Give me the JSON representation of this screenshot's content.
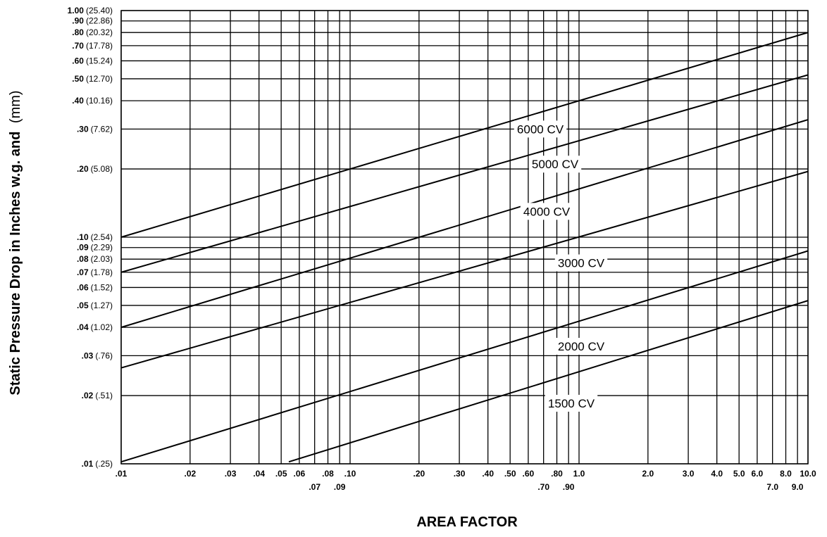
{
  "chart_data": {
    "type": "line",
    "title": "",
    "xlabel": "AREA FACTOR",
    "ylabel_bold": "Static Pressure Drop in Inches w.g. and",
    "ylabel_paren": "(mm)",
    "x_scale": "log",
    "y_scale": "log",
    "xlim": [
      0.01,
      10.0
    ],
    "ylim": [
      0.01,
      1.0
    ],
    "grid": true,
    "x_ticks": [
      {
        "value": 0.01,
        "label": ".01",
        "row": 1
      },
      {
        "value": 0.02,
        "label": ".02",
        "row": 1
      },
      {
        "value": 0.03,
        "label": ".03",
        "row": 1
      },
      {
        "value": 0.04,
        "label": ".04",
        "row": 1
      },
      {
        "value": 0.05,
        "label": ".05",
        "row": 1
      },
      {
        "value": 0.06,
        "label": ".06",
        "row": 1
      },
      {
        "value": 0.07,
        "label": ".07",
        "row": 2
      },
      {
        "value": 0.08,
        "label": ".08",
        "row": 1
      },
      {
        "value": 0.09,
        "label": ".09",
        "row": 2
      },
      {
        "value": 0.1,
        "label": ".10",
        "row": 1
      },
      {
        "value": 0.2,
        "label": ".20",
        "row": 1
      },
      {
        "value": 0.3,
        "label": ".30",
        "row": 1
      },
      {
        "value": 0.4,
        "label": ".40",
        "row": 1
      },
      {
        "value": 0.5,
        "label": ".50",
        "row": 1
      },
      {
        "value": 0.6,
        "label": ".60",
        "row": 1
      },
      {
        "value": 0.7,
        "label": ".70",
        "row": 2
      },
      {
        "value": 0.8,
        "label": ".80",
        "row": 1
      },
      {
        "value": 0.9,
        "label": ".90",
        "row": 2
      },
      {
        "value": 1.0,
        "label": "1.0",
        "row": 1
      },
      {
        "value": 2.0,
        "label": "2.0",
        "row": 1
      },
      {
        "value": 3.0,
        "label": "3.0",
        "row": 1
      },
      {
        "value": 4.0,
        "label": "4.0",
        "row": 1
      },
      {
        "value": 5.0,
        "label": "5.0",
        "row": 1
      },
      {
        "value": 6.0,
        "label": "6.0",
        "row": 1
      },
      {
        "value": 7.0,
        "label": "7.0",
        "row": 2
      },
      {
        "value": 8.0,
        "label": "8.0",
        "row": 1
      },
      {
        "value": 9.0,
        "label": "9.0",
        "row": 2
      },
      {
        "value": 10.0,
        "label": "10.0",
        "row": 1
      }
    ],
    "y_ticks": [
      {
        "value": 0.01,
        "label": ".01",
        "mm": "(.25)"
      },
      {
        "value": 0.02,
        "label": ".02",
        "mm": "(.51)"
      },
      {
        "value": 0.03,
        "label": ".03",
        "mm": "(.76)"
      },
      {
        "value": 0.04,
        "label": ".04",
        "mm": "(1.02)"
      },
      {
        "value": 0.05,
        "label": ".05",
        "mm": "(1.27)"
      },
      {
        "value": 0.06,
        "label": ".06",
        "mm": "(1.52)"
      },
      {
        "value": 0.07,
        "label": ".07",
        "mm": "(1.78)"
      },
      {
        "value": 0.08,
        "label": ".08",
        "mm": "(2.03)"
      },
      {
        "value": 0.09,
        "label": ".09",
        "mm": "(2.29)"
      },
      {
        "value": 0.1,
        "label": ".10",
        "mm": "(2.54)"
      },
      {
        "value": 0.2,
        "label": ".20",
        "mm": "(5.08)"
      },
      {
        "value": 0.3,
        "label": ".30",
        "mm": "(7.62)"
      },
      {
        "value": 0.4,
        "label": ".40",
        "mm": "(10.16)"
      },
      {
        "value": 0.5,
        "label": ".50",
        "mm": "(12.70)"
      },
      {
        "value": 0.6,
        "label": ".60",
        "mm": "(15.24)"
      },
      {
        "value": 0.7,
        "label": ".70",
        "mm": "(17.78)"
      },
      {
        "value": 0.8,
        "label": ".80",
        "mm": "(20.32)"
      },
      {
        "value": 0.9,
        "label": ".90",
        "mm": "(22.86)"
      },
      {
        "value": 1.0,
        "label": "1.00",
        "mm": "(25.40)"
      }
    ],
    "series": [
      {
        "name": "6000 CV",
        "points": [
          [
            0.01,
            0.1
          ],
          [
            10.0,
            0.8
          ]
        ],
        "label_at": 0.3
      },
      {
        "name": "5000 CV",
        "points": [
          [
            0.01,
            0.07
          ],
          [
            10.0,
            0.52
          ]
        ],
        "label_at": 0.21
      },
      {
        "name": "4000 CV",
        "points": [
          [
            0.01,
            0.04
          ],
          [
            10.0,
            0.33
          ]
        ],
        "label_at": 0.13
      },
      {
        "name": "3000 CV",
        "points": [
          [
            0.01,
            0.0265
          ],
          [
            10.0,
            0.195
          ]
        ],
        "label_at": 0.077
      },
      {
        "name": "2000 CV",
        "points": [
          [
            0.01,
            0.0102
          ],
          [
            10.0,
            0.087
          ]
        ],
        "label_at": 0.033
      },
      {
        "name": "1500 CV",
        "points": [
          [
            0.054,
            0.0102
          ],
          [
            10.0,
            0.0525
          ]
        ],
        "label_at": 0.0185
      }
    ]
  }
}
